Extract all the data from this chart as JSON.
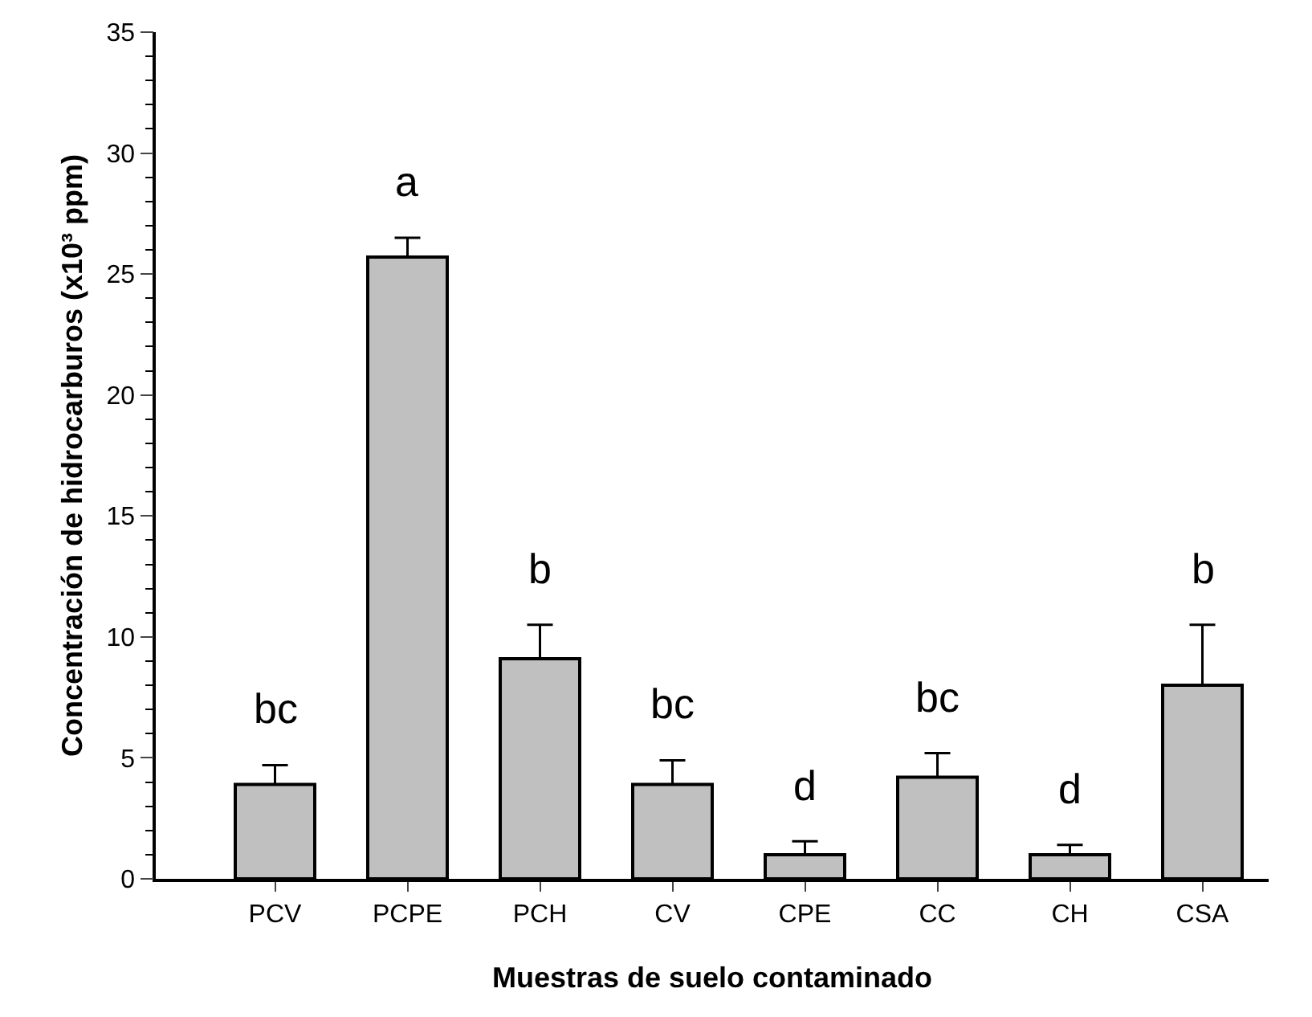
{
  "chart_data": {
    "type": "bar",
    "xlabel": "Muestras de suelo contaminado",
    "ylabel": "Concentración de hidrocarburos (x10³ ppm)",
    "categories": [
      "PCV",
      "PCPE",
      "PCH",
      "CV",
      "CPE",
      "CC",
      "CH",
      "CSA"
    ],
    "values": [
      3.9,
      25.7,
      9.1,
      3.9,
      1.0,
      4.2,
      1.0,
      8.0
    ],
    "errors": [
      [
        3.9,
        4.7
      ],
      [
        25.7,
        26.5
      ],
      [
        9.1,
        10.5
      ],
      [
        3.9,
        4.9
      ],
      [
        1.0,
        1.55
      ],
      [
        4.2,
        5.2
      ],
      [
        1.0,
        1.4
      ],
      [
        8.0,
        10.5
      ]
    ],
    "color": "#c0c0c0",
    "ylim": [
      0,
      35
    ],
    "yticks": [
      0,
      5,
      10,
      15,
      20,
      25,
      30,
      35
    ],
    "annotations": [
      "bc",
      "a",
      "b",
      "bc",
      "d",
      "bc",
      "d",
      "b"
    ]
  }
}
